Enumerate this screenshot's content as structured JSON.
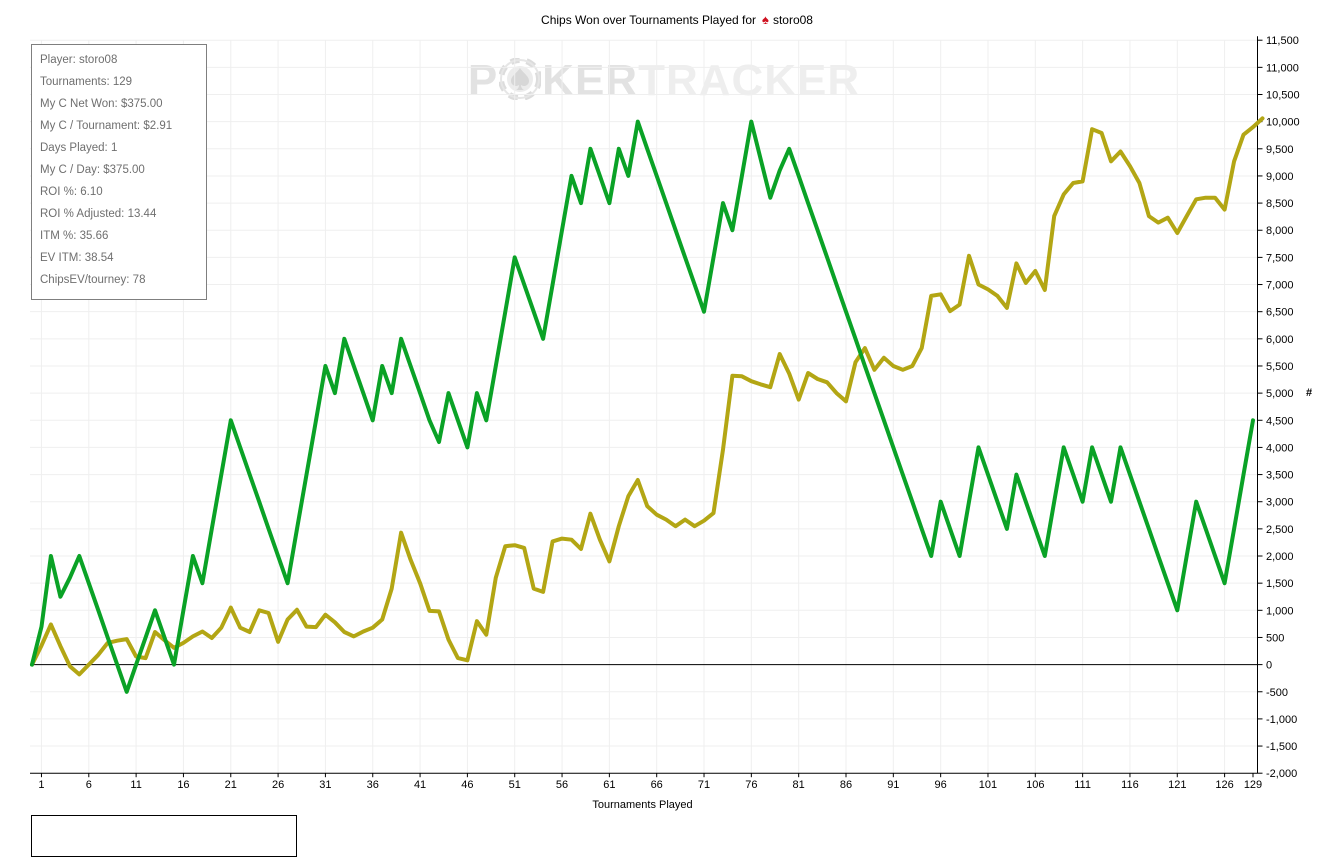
{
  "window": {
    "title_prefix": "Chips Won over Tournaments Played for",
    "title_player": "storo08"
  },
  "stats_box": {
    "lines": [
      "Player: storo08",
      "Tournaments: 129",
      "My C Net Won: $375.00",
      "My C / Tournament: $2.91",
      "Days Played: 1",
      "My C / Day: $375.00",
      "ROI %: 6.10",
      "ROI % Adjusted: 13.44",
      "ITM %: 35.66",
      "EV ITM: 38.54",
      "ChipsEV/tourney: 78"
    ]
  },
  "watermark": {
    "p": "P",
    "ker": "KER",
    "tracker": "TRACKER"
  },
  "axes": {
    "x_label": "Tournaments Played",
    "y_label": "#"
  },
  "colors": {
    "green_line": "#0aa226",
    "dark_yellow_line": "#b3a614",
    "gridline": "#efefef",
    "axis": "#000000",
    "stats_text": "#6f6f6f",
    "watermark_dark": "#e2e2e2",
    "watermark_light": "#eeeeee",
    "title_spade": "#cf1020"
  },
  "chart_data": {
    "type": "line",
    "title": "Chips Won over Tournaments Played for storo08",
    "xlabel": "Tournaments Played",
    "ylabel": "#",
    "xlim": [
      0,
      129
    ],
    "ylim": [
      -2000,
      11500
    ],
    "ystep": 500,
    "grid": true,
    "legend_position": "none",
    "x_ticks": [
      1,
      6,
      11,
      16,
      21,
      26,
      31,
      36,
      41,
      46,
      51,
      56,
      61,
      66,
      71,
      76,
      81,
      86,
      91,
      96,
      101,
      106,
      111,
      116,
      121,
      126,
      129
    ],
    "series": [
      {
        "name": "chips-ev-dark-yellow",
        "color": "#b3a614",
        "x_start": 0,
        "values": [
          0,
          350,
          740,
          340,
          -30,
          -180,
          0,
          180,
          400,
          440,
          470,
          150,
          120,
          600,
          450,
          310,
          400,
          520,
          610,
          490,
          680,
          1050,
          680,
          600,
          1000,
          950,
          420,
          830,
          1010,
          700,
          690,
          920,
          780,
          600,
          520,
          610,
          680,
          830,
          1400,
          2430,
          1930,
          1500,
          990,
          980,
          460,
          120,
          80,
          800,
          550,
          1600,
          2180,
          2200,
          2150,
          1400,
          1340,
          2270,
          2320,
          2300,
          2130,
          2780,
          2300,
          1900,
          2550,
          3100,
          3400,
          2920,
          2760,
          2670,
          2550,
          2670,
          2550,
          2650,
          2790,
          3960,
          5320,
          5310,
          5220,
          5160,
          5110,
          5720,
          5360,
          4880,
          5370,
          5260,
          5200,
          5000,
          4850,
          5570,
          5830,
          5430,
          5650,
          5500,
          5430,
          5500,
          5830,
          6790,
          6820,
          6510,
          6630,
          7530,
          7000,
          6910,
          6790,
          6570,
          7390,
          7030,
          7250,
          6900,
          8260,
          8660,
          8870,
          8900,
          9860,
          9790,
          9270,
          9450,
          9180,
          8870,
          8260,
          8140,
          8230,
          7950,
          8260,
          8570,
          8600,
          8600,
          8380,
          9270,
          9760,
          9900,
          10060
        ]
      },
      {
        "name": "chips-won-green",
        "color": "#0aa226",
        "x_start": 0,
        "values": [
          0,
          700,
          2000,
          1250,
          1600,
          2000,
          1500,
          1000,
          500,
          0,
          -500,
          0,
          500,
          1000,
          500,
          0,
          1000,
          2000,
          1500,
          2500,
          3500,
          4500,
          4000,
          3500,
          3000,
          2500,
          2000,
          1500,
          2500,
          3500,
          4500,
          5500,
          5000,
          6000,
          5500,
          5000,
          4500,
          5500,
          5000,
          6000,
          5500,
          5000,
          4500,
          4100,
          5000,
          4500,
          4000,
          5000,
          4500,
          5500,
          6500,
          7500,
          7000,
          6500,
          6000,
          7000,
          8000,
          9000,
          8500,
          9500,
          9000,
          8500,
          9500,
          9000,
          10000,
          9500,
          9000,
          8500,
          8000,
          7500,
          7000,
          6500,
          7500,
          8500,
          8000,
          9000,
          10000,
          9300,
          8600,
          9100,
          9500,
          9000,
          8500,
          8000,
          7500,
          7000,
          6500,
          6000,
          5500,
          5000,
          4500,
          4000,
          3500,
          3000,
          2500,
          2000,
          3000,
          2500,
          2000,
          3000,
          4000,
          3500,
          3000,
          2500,
          3500,
          3000,
          2500,
          2000,
          3000,
          4000,
          3500,
          3000,
          4000,
          3500,
          3000,
          4000,
          3500,
          3000,
          2500,
          2000,
          1500,
          1000,
          2000,
          3000,
          2500,
          2000,
          1500,
          2500,
          3500,
          4500
        ]
      }
    ]
  }
}
